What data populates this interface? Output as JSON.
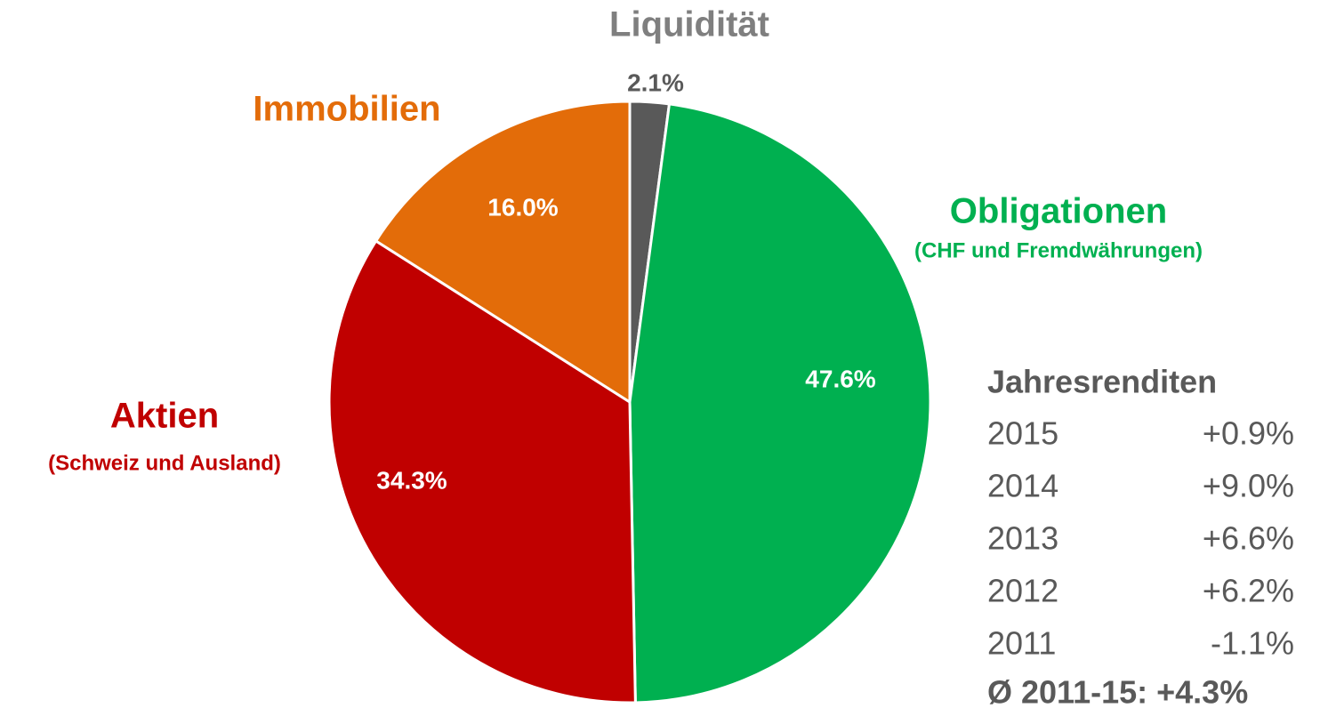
{
  "chart_data": {
    "type": "pie",
    "categories": [
      "Liquidität",
      "Obligationen",
      "Aktien",
      "Immobilien"
    ],
    "category_notes": [
      null,
      "(CHF und Fremdwährungen)",
      "(Schweiz und Ausland)",
      null
    ],
    "values": [
      2.1,
      47.6,
      34.3,
      16.0
    ],
    "value_labels": [
      "2.1%",
      "47.6%",
      "34.3%",
      "16.0%"
    ],
    "colors": [
      "#595959",
      "#00b050",
      "#c00000",
      "#e36c09"
    ],
    "label_colors": [
      "#7f7f7f",
      "#00b050",
      "#c00000",
      "#e36c09"
    ]
  },
  "returns": {
    "title": "Jahresrenditen",
    "rows": [
      [
        "2015",
        "+0.9%"
      ],
      [
        "2014",
        "+9.0%"
      ],
      [
        "2013",
        "+6.6%"
      ],
      [
        "2012",
        "+6.2%"
      ],
      [
        "2011",
        "-1.1%"
      ]
    ],
    "summary": "Ø 2011-15: +4.3%"
  }
}
